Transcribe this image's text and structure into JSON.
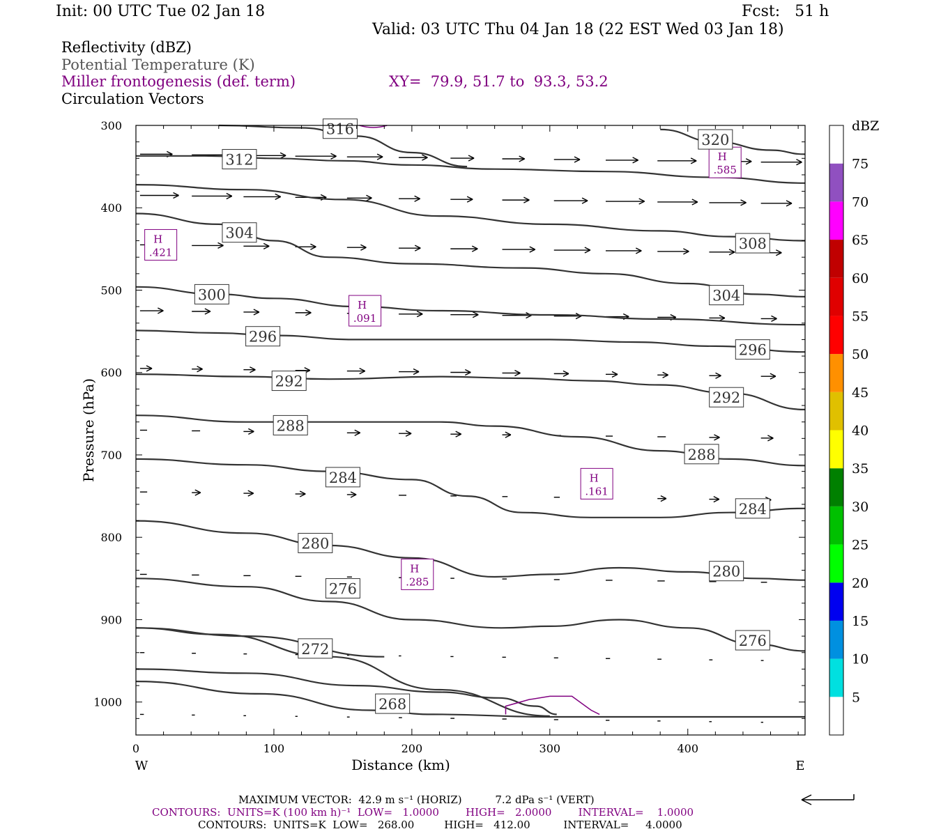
{
  "header": {
    "init": "Init: 00 UTC Tue 02 Jan 18",
    "fcst": "Fcst:   51 h",
    "valid": "Valid: 03 UTC Thu 04 Jan 18 (22 EST Wed 03 Jan 18)"
  },
  "legend": {
    "reflectivity": "Reflectivity (dBZ)",
    "theta": "Potential Temperature (K)",
    "miller": "Miller frontogenesis (def. term)",
    "xy": "XY=  79.9, 51.7 to  93.3, 53.2",
    "vectors": "Circulation Vectors"
  },
  "colors": {
    "theta_line": "#333333",
    "frontogenesis": "#800080",
    "legend_gray": "#555555"
  },
  "footer": {
    "max_vector": "MAXIMUM VECTOR:  42.9 m s⁻¹ (HORIZ)          7.2 dPa s⁻¹ (VERT)",
    "contours_fg": "CONTOURS:  UNITS=K (100 km h)⁻¹  LOW=   1.0000        HIGH=   2.0000        INTERVAL=    1.0000",
    "contours_theta": "CONTOURS:  UNITS=K  LOW=   268.00         HIGH=   412.00          INTERVAL=     4.0000"
  },
  "chart_data": {
    "type": "cross-section",
    "xlabel": "Distance (km)",
    "ylabel": "Pressure (hPa)",
    "xlim": [
      0,
      485
    ],
    "ylim": [
      1040,
      300
    ],
    "x_ticks": [
      0,
      100,
      200,
      300,
      400
    ],
    "y_ticks": [
      300,
      400,
      500,
      600,
      700,
      800,
      900,
      1000
    ],
    "x_end_labels": [
      "W",
      "E"
    ],
    "colorbar": {
      "title": "dBZ",
      "labels": [
        "5",
        "10",
        "15",
        "20",
        "25",
        "30",
        "35",
        "40",
        "45",
        "50",
        "55",
        "60",
        "65",
        "70",
        "75"
      ],
      "colors": [
        "#ffffff",
        "#00e0e0",
        "#0090e0",
        "#0000f0",
        "#00ff00",
        "#00c000",
        "#008000",
        "#ffff00",
        "#e0c000",
        "#ff9000",
        "#ff0000",
        "#e00000",
        "#c00000",
        "#ff00ff",
        "#9050c0",
        "#ffffff"
      ]
    },
    "theta_contours": [
      {
        "label": "268",
        "points": [
          [
            0,
            975
          ],
          [
            90,
            990
          ],
          [
            170,
            1010
          ],
          [
            215,
            1015
          ],
          [
            300,
            1018
          ],
          [
            485,
            1018
          ]
        ],
        "label_at": [
          186,
          1002
        ]
      },
      {
        "label": "272",
        "points": [
          [
            0,
            960
          ],
          [
            80,
            965
          ],
          [
            160,
            980
          ],
          [
            220,
            988
          ],
          [
            263,
            995
          ],
          [
            290,
            1005
          ],
          [
            305,
            1015
          ]
        ],
        "label_at": [
          130,
          935
        ]
      },
      {
        "label": "272",
        "points": [
          [
            0,
            910
          ],
          [
            60,
            918
          ],
          [
            140,
            945
          ],
          [
            220,
            985
          ],
          [
            300,
            1017
          ]
        ],
        "label_at": [
          130,
          935
        ],
        "label_hidden": true
      },
      {
        "label": "276",
        "points": [
          [
            0,
            910
          ],
          [
            80,
            920
          ],
          [
            180,
            945
          ]
        ],
        "label_hidden": true
      },
      {
        "label": "276",
        "points": [
          [
            0,
            850
          ],
          [
            80,
            860
          ],
          [
            140,
            878
          ],
          [
            200,
            900
          ],
          [
            265,
            910
          ],
          [
            300,
            908
          ],
          [
            350,
            900
          ],
          [
            400,
            910
          ],
          [
            450,
            930
          ],
          [
            485,
            938
          ]
        ],
        "label_at": [
          150,
          862
        ],
        "label2_at": [
          447,
          925
        ]
      },
      {
        "label": "280",
        "points": [
          [
            0,
            780
          ],
          [
            80,
            795
          ],
          [
            140,
            810
          ],
          [
            200,
            825
          ],
          [
            260,
            848
          ],
          [
            300,
            845
          ],
          [
            350,
            837
          ],
          [
            400,
            842
          ],
          [
            450,
            850
          ],
          [
            485,
            852
          ]
        ],
        "label_at": [
          130,
          807
        ],
        "label2_at": [
          428,
          841
        ]
      },
      {
        "label": "284",
        "points": [
          [
            0,
            705
          ],
          [
            80,
            712
          ],
          [
            140,
            720
          ],
          [
            200,
            730
          ],
          [
            240,
            750
          ],
          [
            280,
            770
          ],
          [
            330,
            776
          ],
          [
            380,
            776
          ],
          [
            430,
            770
          ],
          [
            485,
            765
          ]
        ],
        "label_at": [
          150,
          727
        ],
        "label2_at": [
          447,
          765
        ]
      },
      {
        "label": "288",
        "points": [
          [
            0,
            652
          ],
          [
            80,
            660
          ],
          [
            160,
            660
          ],
          [
            220,
            660
          ],
          [
            260,
            665
          ],
          [
            320,
            678
          ],
          [
            380,
            695
          ],
          [
            430,
            705
          ],
          [
            485,
            713
          ]
        ],
        "label_at": [
          112,
          664
        ],
        "label2_at": [
          410,
          699
        ]
      },
      {
        "label": "292",
        "points": [
          [
            0,
            602
          ],
          [
            80,
            605
          ],
          [
            140,
            608
          ],
          [
            220,
            605
          ],
          [
            280,
            607
          ],
          [
            330,
            610
          ],
          [
            380,
            615
          ],
          [
            430,
            625
          ],
          [
            485,
            645
          ]
        ],
        "label_at": [
          111,
          610
        ],
        "label2_at": [
          428,
          630
        ]
      },
      {
        "label": "296",
        "points": [
          [
            0,
            549
          ],
          [
            60,
            552
          ],
          [
            100,
            555
          ],
          [
            160,
            560
          ],
          [
            240,
            560
          ],
          [
            300,
            560
          ],
          [
            360,
            563
          ],
          [
            420,
            568
          ],
          [
            485,
            575
          ]
        ],
        "label_at": [
          92,
          556
        ],
        "label2_at": [
          447,
          572
        ]
      },
      {
        "label": "300",
        "points": [
          [
            0,
            496
          ],
          [
            60,
            505
          ],
          [
            100,
            510
          ],
          [
            160,
            520
          ],
          [
            220,
            525
          ],
          [
            300,
            530
          ],
          [
            380,
            535
          ],
          [
            485,
            542
          ]
        ],
        "label_at": [
          55,
          505
        ]
      },
      {
        "label": "304",
        "points": [
          [
            0,
            407
          ],
          [
            60,
            420
          ],
          [
            100,
            440
          ],
          [
            140,
            460
          ],
          [
            200,
            468
          ],
          [
            280,
            473
          ],
          [
            340,
            480
          ],
          [
            400,
            492
          ],
          [
            450,
            505
          ],
          [
            485,
            508
          ]
        ],
        "label_at": [
          75,
          430
        ],
        "label2_at": [
          428,
          506
        ]
      },
      {
        "label": "308",
        "points": [
          [
            0,
            372
          ],
          [
            80,
            378
          ],
          [
            150,
            390
          ],
          [
            220,
            410
          ],
          [
            300,
            420
          ],
          [
            380,
            428
          ],
          [
            430,
            435
          ],
          [
            485,
            440
          ]
        ],
        "label_at": [
          447,
          443
        ],
        "label_hidden": false
      },
      {
        "label": "312",
        "points": [
          [
            0,
            337
          ],
          [
            50,
            337
          ],
          [
            100,
            340
          ],
          [
            150,
            343
          ],
          [
            200,
            348
          ],
          [
            260,
            353
          ],
          [
            340,
            356
          ],
          [
            420,
            363
          ],
          [
            485,
            370
          ]
        ],
        "label_at": [
          75,
          341
        ]
      },
      {
        "label": "316",
        "points": [
          [
            60,
            300
          ],
          [
            120,
            303
          ],
          [
            160,
            313
          ],
          [
            200,
            333
          ],
          [
            240,
            350
          ]
        ],
        "label_at": [
          148,
          304
        ]
      },
      {
        "label": "320",
        "points": [
          [
            380,
            305
          ],
          [
            420,
            320
          ],
          [
            460,
            330
          ],
          [
            485,
            335
          ]
        ],
        "label_at": [
          420,
          317
        ]
      }
    ],
    "frontogenesis_maxima": [
      {
        "label": "H",
        "value": ".421",
        "x": 18,
        "p": 445
      },
      {
        "label": "H",
        "value": ".585",
        "x": 427,
        "p": 345
      },
      {
        "label": "H",
        "value": ".091",
        "x": 166,
        "p": 525
      },
      {
        "label": "H",
        "value": ".161",
        "x": 334,
        "p": 735
      },
      {
        "label": "H",
        "value": ".285",
        "x": 204,
        "p": 845
      }
    ]
  }
}
